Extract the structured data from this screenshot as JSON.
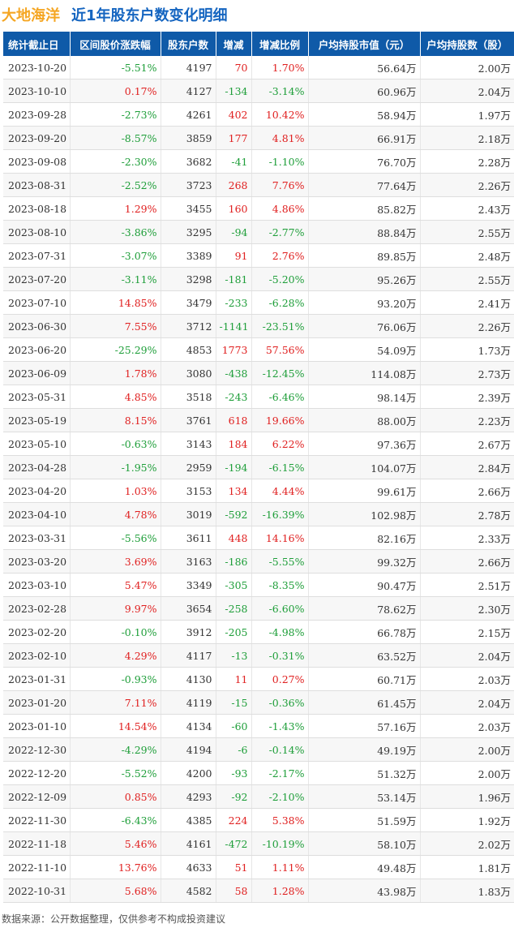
{
  "title": {
    "company": "大地海洋",
    "subtitle": "近1年股东户数变化明细"
  },
  "table": {
    "headers": [
      "统计截止日",
      "区间股价涨跌幅",
      "股东户数",
      "增减",
      "增减比例",
      "户均持股市值（元）",
      "户均持股数（股）"
    ],
    "rows": [
      [
        "2023-10-20",
        "-5.51%",
        "4197",
        "70",
        "1.70%",
        "56.64万",
        "2.00万"
      ],
      [
        "2023-10-10",
        "0.17%",
        "4127",
        "-134",
        "-3.14%",
        "60.96万",
        "2.04万"
      ],
      [
        "2023-09-28",
        "-2.73%",
        "4261",
        "402",
        "10.42%",
        "58.94万",
        "1.97万"
      ],
      [
        "2023-09-20",
        "-8.57%",
        "3859",
        "177",
        "4.81%",
        "66.91万",
        "2.18万"
      ],
      [
        "2023-09-08",
        "-2.30%",
        "3682",
        "-41",
        "-1.10%",
        "76.70万",
        "2.28万"
      ],
      [
        "2023-08-31",
        "-2.52%",
        "3723",
        "268",
        "7.76%",
        "77.64万",
        "2.26万"
      ],
      [
        "2023-08-18",
        "1.29%",
        "3455",
        "160",
        "4.86%",
        "85.82万",
        "2.43万"
      ],
      [
        "2023-08-10",
        "-3.86%",
        "3295",
        "-94",
        "-2.77%",
        "88.84万",
        "2.55万"
      ],
      [
        "2023-07-31",
        "-3.07%",
        "3389",
        "91",
        "2.76%",
        "89.85万",
        "2.48万"
      ],
      [
        "2023-07-20",
        "-3.11%",
        "3298",
        "-181",
        "-5.20%",
        "95.26万",
        "2.55万"
      ],
      [
        "2023-07-10",
        "14.85%",
        "3479",
        "-233",
        "-6.28%",
        "93.20万",
        "2.41万"
      ],
      [
        "2023-06-30",
        "7.55%",
        "3712",
        "-1141",
        "-23.51%",
        "76.06万",
        "2.26万"
      ],
      [
        "2023-06-20",
        "-25.29%",
        "4853",
        "1773",
        "57.56%",
        "54.09万",
        "1.73万"
      ],
      [
        "2023-06-09",
        "1.78%",
        "3080",
        "-438",
        "-12.45%",
        "114.08万",
        "2.73万"
      ],
      [
        "2023-05-31",
        "4.85%",
        "3518",
        "-243",
        "-6.46%",
        "98.14万",
        "2.39万"
      ],
      [
        "2023-05-19",
        "8.15%",
        "3761",
        "618",
        "19.66%",
        "88.00万",
        "2.23万"
      ],
      [
        "2023-05-10",
        "-0.63%",
        "3143",
        "184",
        "6.22%",
        "97.36万",
        "2.67万"
      ],
      [
        "2023-04-28",
        "-1.95%",
        "2959",
        "-194",
        "-6.15%",
        "104.07万",
        "2.84万"
      ],
      [
        "2023-04-20",
        "1.03%",
        "3153",
        "134",
        "4.44%",
        "99.61万",
        "2.66万"
      ],
      [
        "2023-04-10",
        "4.78%",
        "3019",
        "-592",
        "-16.39%",
        "102.98万",
        "2.78万"
      ],
      [
        "2023-03-31",
        "-5.56%",
        "3611",
        "448",
        "14.16%",
        "82.16万",
        "2.33万"
      ],
      [
        "2023-03-20",
        "3.69%",
        "3163",
        "-186",
        "-5.55%",
        "99.32万",
        "2.66万"
      ],
      [
        "2023-03-10",
        "5.47%",
        "3349",
        "-305",
        "-8.35%",
        "90.47万",
        "2.51万"
      ],
      [
        "2023-02-28",
        "9.97%",
        "3654",
        "-258",
        "-6.60%",
        "78.62万",
        "2.30万"
      ],
      [
        "2023-02-20",
        "-0.10%",
        "3912",
        "-205",
        "-4.98%",
        "66.78万",
        "2.15万"
      ],
      [
        "2023-02-10",
        "4.29%",
        "4117",
        "-13",
        "-0.31%",
        "63.52万",
        "2.04万"
      ],
      [
        "2023-01-31",
        "-0.93%",
        "4130",
        "11",
        "0.27%",
        "60.71万",
        "2.03万"
      ],
      [
        "2023-01-20",
        "7.11%",
        "4119",
        "-15",
        "-0.36%",
        "61.45万",
        "2.04万"
      ],
      [
        "2023-01-10",
        "14.54%",
        "4134",
        "-60",
        "-1.43%",
        "57.16万",
        "2.03万"
      ],
      [
        "2022-12-30",
        "-4.29%",
        "4194",
        "-6",
        "-0.14%",
        "49.19万",
        "2.00万"
      ],
      [
        "2022-12-20",
        "-5.52%",
        "4200",
        "-93",
        "-2.17%",
        "51.32万",
        "2.00万"
      ],
      [
        "2022-12-09",
        "0.85%",
        "4293",
        "-92",
        "-2.10%",
        "53.14万",
        "1.96万"
      ],
      [
        "2022-11-30",
        "-6.43%",
        "4385",
        "224",
        "5.38%",
        "51.59万",
        "1.92万"
      ],
      [
        "2022-11-18",
        "5.46%",
        "4161",
        "-472",
        "-10.19%",
        "58.10万",
        "2.02万"
      ],
      [
        "2022-11-10",
        "13.76%",
        "4633",
        "51",
        "1.11%",
        "49.48万",
        "1.81万"
      ],
      [
        "2022-10-31",
        "5.68%",
        "4582",
        "58",
        "1.28%",
        "43.98万",
        "1.83万"
      ]
    ]
  },
  "footer": "数据来源：公开数据整理，仅供参考不构成投资建议",
  "colors": {
    "header_bg": "#0f5aa8",
    "up": "#e02020",
    "down": "#1e9e39",
    "company": "#f5a623",
    "subtitle": "#1565c0"
  }
}
